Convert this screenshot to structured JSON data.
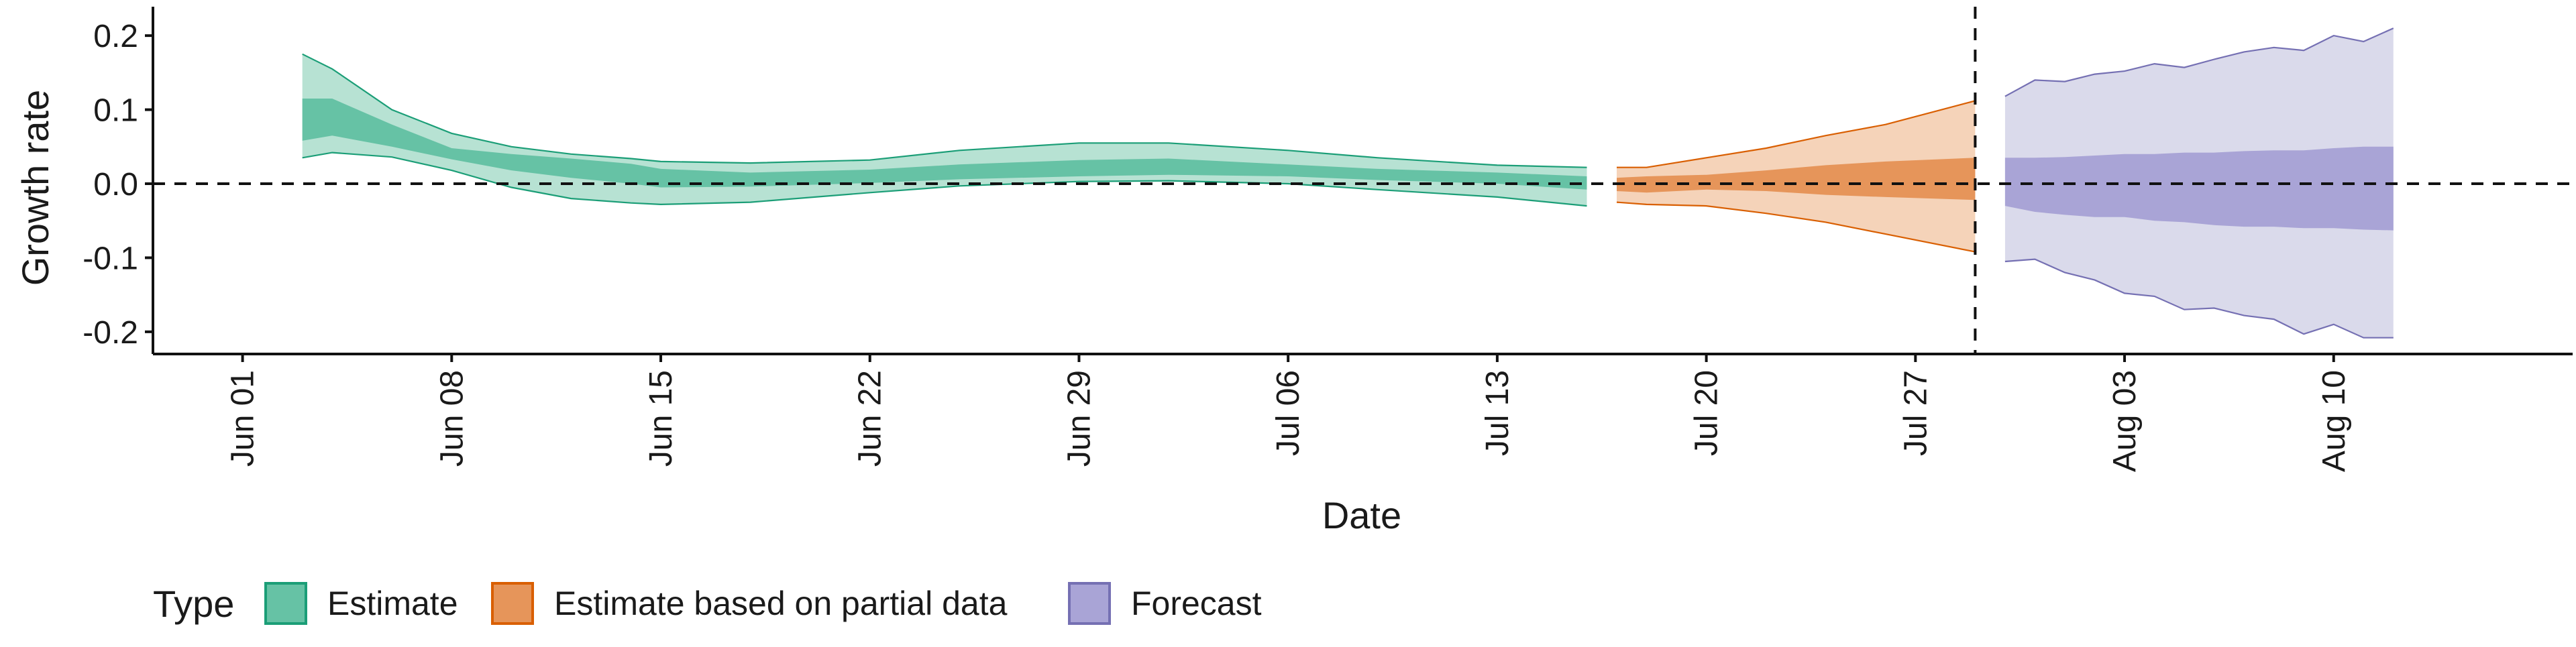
{
  "chart_data": {
    "type": "area",
    "title": "",
    "xlabel": "Date",
    "ylabel": "Growth rate",
    "x_type": "date",
    "xlim": [
      "2021-05-29",
      "2021-08-18"
    ],
    "ylim": [
      -0.23,
      0.23
    ],
    "x_ticks": [
      {
        "date": "2021-06-01",
        "label": "Jun 01"
      },
      {
        "date": "2021-06-08",
        "label": "Jun 08"
      },
      {
        "date": "2021-06-15",
        "label": "Jun 15"
      },
      {
        "date": "2021-06-22",
        "label": "Jun 22"
      },
      {
        "date": "2021-06-29",
        "label": "Jun 29"
      },
      {
        "date": "2021-07-06",
        "label": "Jul 06"
      },
      {
        "date": "2021-07-13",
        "label": "Jul 13"
      },
      {
        "date": "2021-07-20",
        "label": "Jul 20"
      },
      {
        "date": "2021-07-27",
        "label": "Jul 27"
      },
      {
        "date": "2021-08-03",
        "label": "Aug 03"
      },
      {
        "date": "2021-08-10",
        "label": "Aug 10"
      }
    ],
    "y_ticks": [
      {
        "value": 0.2,
        "label": "0.2"
      },
      {
        "value": 0.1,
        "label": "0.1"
      },
      {
        "value": 0.0,
        "label": "0.0"
      },
      {
        "value": -0.1,
        "label": "-0.1"
      },
      {
        "value": -0.2,
        "label": "-0.2"
      }
    ],
    "reference_lines": [
      {
        "axis": "y",
        "value": 0,
        "style": "dashed"
      },
      {
        "axis": "x",
        "date": "2021-07-29",
        "style": "dashed"
      }
    ],
    "grid": false,
    "legend": {
      "title": "Type",
      "position": "bottom-left",
      "entries": [
        {
          "label": "Estimate",
          "fill": "#66c2a5",
          "stroke": "#1b9e77"
        },
        {
          "label": "Estimate based on partial data",
          "fill": "#e6955a",
          "stroke": "#d95f02"
        },
        {
          "label": "Forecast",
          "fill": "#a9a4d6",
          "stroke": "#7570b3"
        }
      ]
    },
    "series": [
      {
        "name": "Estimate",
        "outer_fill": "#b7e2d3",
        "inner_fill": "#66c2a5",
        "stroke": "#1b9e77",
        "x": [
          "2021-06-03",
          "2021-06-04",
          "2021-06-06",
          "2021-06-08",
          "2021-06-10",
          "2021-06-12",
          "2021-06-14",
          "2021-06-15",
          "2021-06-18",
          "2021-06-22",
          "2021-06-25",
          "2021-06-29",
          "2021-07-02",
          "2021-07-06",
          "2021-07-09",
          "2021-07-13",
          "2021-07-16"
        ],
        "outer_lower": [
          0.035,
          0.042,
          0.036,
          0.018,
          -0.005,
          -0.02,
          -0.026,
          -0.028,
          -0.025,
          -0.012,
          -0.003,
          0.003,
          0.004,
          0.0,
          -0.008,
          -0.018,
          -0.03
        ],
        "outer_upper": [
          0.175,
          0.155,
          0.1,
          0.068,
          0.05,
          0.04,
          0.034,
          0.03,
          0.028,
          0.032,
          0.045,
          0.055,
          0.055,
          0.045,
          0.035,
          0.025,
          0.022
        ],
        "inner_lower": [
          0.058,
          0.065,
          0.05,
          0.033,
          0.018,
          0.008,
          0.0,
          -0.005,
          -0.004,
          0.001,
          0.006,
          0.01,
          0.012,
          0.01,
          0.005,
          0.0,
          -0.008
        ],
        "inner_upper": [
          0.115,
          0.115,
          0.08,
          0.048,
          0.04,
          0.034,
          0.027,
          0.02,
          0.015,
          0.019,
          0.026,
          0.032,
          0.034,
          0.026,
          0.02,
          0.015,
          0.01
        ]
      },
      {
        "name": "Estimate based on partial data",
        "outer_fill": "#f5d3b9",
        "inner_fill": "#e6955a",
        "stroke": "#d95f02",
        "x": [
          "2021-07-17",
          "2021-07-18",
          "2021-07-20",
          "2021-07-22",
          "2021-07-24",
          "2021-07-26",
          "2021-07-29"
        ],
        "outer_lower": [
          -0.025,
          -0.028,
          -0.03,
          -0.04,
          -0.052,
          -0.068,
          -0.092
        ],
        "outer_upper": [
          0.022,
          0.022,
          0.035,
          0.048,
          0.065,
          0.08,
          0.112
        ],
        "inner_lower": [
          -0.01,
          -0.012,
          -0.008,
          -0.01,
          -0.015,
          -0.018,
          -0.022
        ],
        "inner_upper": [
          0.008,
          0.01,
          0.012,
          0.018,
          0.025,
          0.03,
          0.035
        ]
      },
      {
        "name": "Forecast",
        "outer_fill": "#dadaeb",
        "inner_fill": "#a9a4d6",
        "stroke": "#7570b3",
        "x": [
          "2021-07-30",
          "2021-07-31",
          "2021-08-01",
          "2021-08-02",
          "2021-08-03",
          "2021-08-04",
          "2021-08-05",
          "2021-08-06",
          "2021-08-07",
          "2021-08-08",
          "2021-08-09",
          "2021-08-10",
          "2021-08-11",
          "2021-08-12"
        ],
        "outer_lower": [
          -0.105,
          -0.102,
          -0.12,
          -0.13,
          -0.148,
          -0.152,
          -0.17,
          -0.168,
          -0.178,
          -0.183,
          -0.203,
          -0.19,
          -0.208,
          -0.208
        ],
        "outer_upper": [
          0.118,
          0.14,
          0.138,
          0.148,
          0.152,
          0.162,
          0.157,
          0.168,
          0.178,
          0.184,
          0.18,
          0.2,
          0.192,
          0.21
        ],
        "inner_lower": [
          -0.03,
          -0.038,
          -0.042,
          -0.045,
          -0.045,
          -0.05,
          -0.052,
          -0.056,
          -0.058,
          -0.058,
          -0.06,
          -0.06,
          -0.062,
          -0.063
        ],
        "inner_upper": [
          0.035,
          0.035,
          0.036,
          0.038,
          0.04,
          0.04,
          0.042,
          0.042,
          0.044,
          0.045,
          0.045,
          0.048,
          0.05,
          0.05
        ]
      }
    ]
  }
}
